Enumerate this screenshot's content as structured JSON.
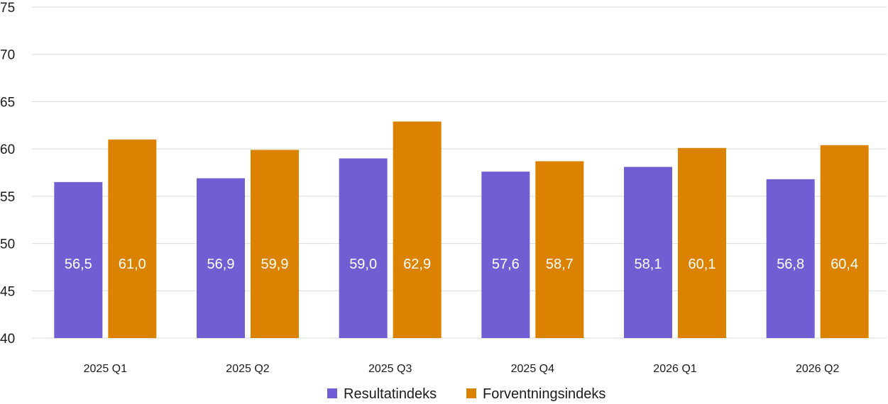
{
  "chart_data": {
    "type": "bar",
    "title": "",
    "xlabel": "",
    "ylabel": "",
    "categories": [
      "2025 Q1",
      "2025 Q2",
      "2025 Q3",
      "2025 Q4",
      "2026 Q1",
      "2026 Q2"
    ],
    "series": [
      {
        "name": "Resultatindeks",
        "color": "#6f5fd3",
        "values": [
          56.5,
          56.9,
          59.0,
          57.6,
          58.1,
          56.8
        ],
        "labels": [
          "56,5",
          "56,9",
          "59,0",
          "57,6",
          "58,1",
          "56,8"
        ]
      },
      {
        "name": "Forventningsindeks",
        "color": "#db8200",
        "values": [
          61.0,
          59.9,
          62.9,
          58.7,
          60.1,
          60.4
        ],
        "labels": [
          "61,0",
          "59,9",
          "62,9",
          "58,7",
          "60,1",
          "60,4"
        ]
      }
    ],
    "ylim": [
      40,
      75
    ],
    "yticks": [
      40,
      45,
      50,
      55,
      60,
      65,
      70,
      75
    ],
    "grid": true,
    "legend_position": "bottom"
  }
}
